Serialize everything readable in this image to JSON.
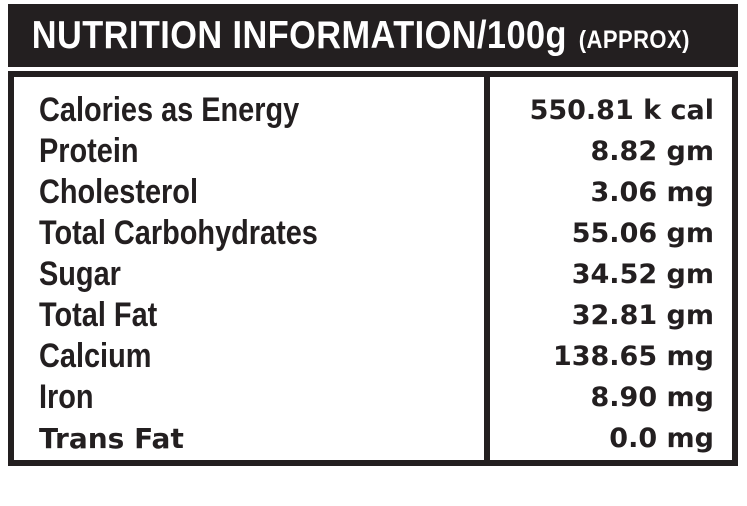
{
  "header": {
    "title": "NUTRITION INFORMATION/100g",
    "suffix": "(APPROX)"
  },
  "table": {
    "rows": [
      {
        "label": "Calories as Energy",
        "value": "550.81 k cal"
      },
      {
        "label": "Protein",
        "value": "8.82 gm"
      },
      {
        "label": "Cholesterol",
        "value": "3.06 mg"
      },
      {
        "label": "Total Carbohydrates",
        "value": "55.06 gm"
      },
      {
        "label": "Sugar",
        "value": "34.52 gm"
      },
      {
        "label": "Total Fat",
        "value": "32.81 gm"
      },
      {
        "label": "Calcium",
        "value": "138.65 mg"
      },
      {
        "label": "Iron",
        "value": "8.90 mg"
      },
      {
        "label": "Trans Fat",
        "value": "0.0 mg"
      }
    ]
  },
  "colors": {
    "ink": "#231f20",
    "paper": "#ffffff",
    "header_text": "#ffffff"
  }
}
